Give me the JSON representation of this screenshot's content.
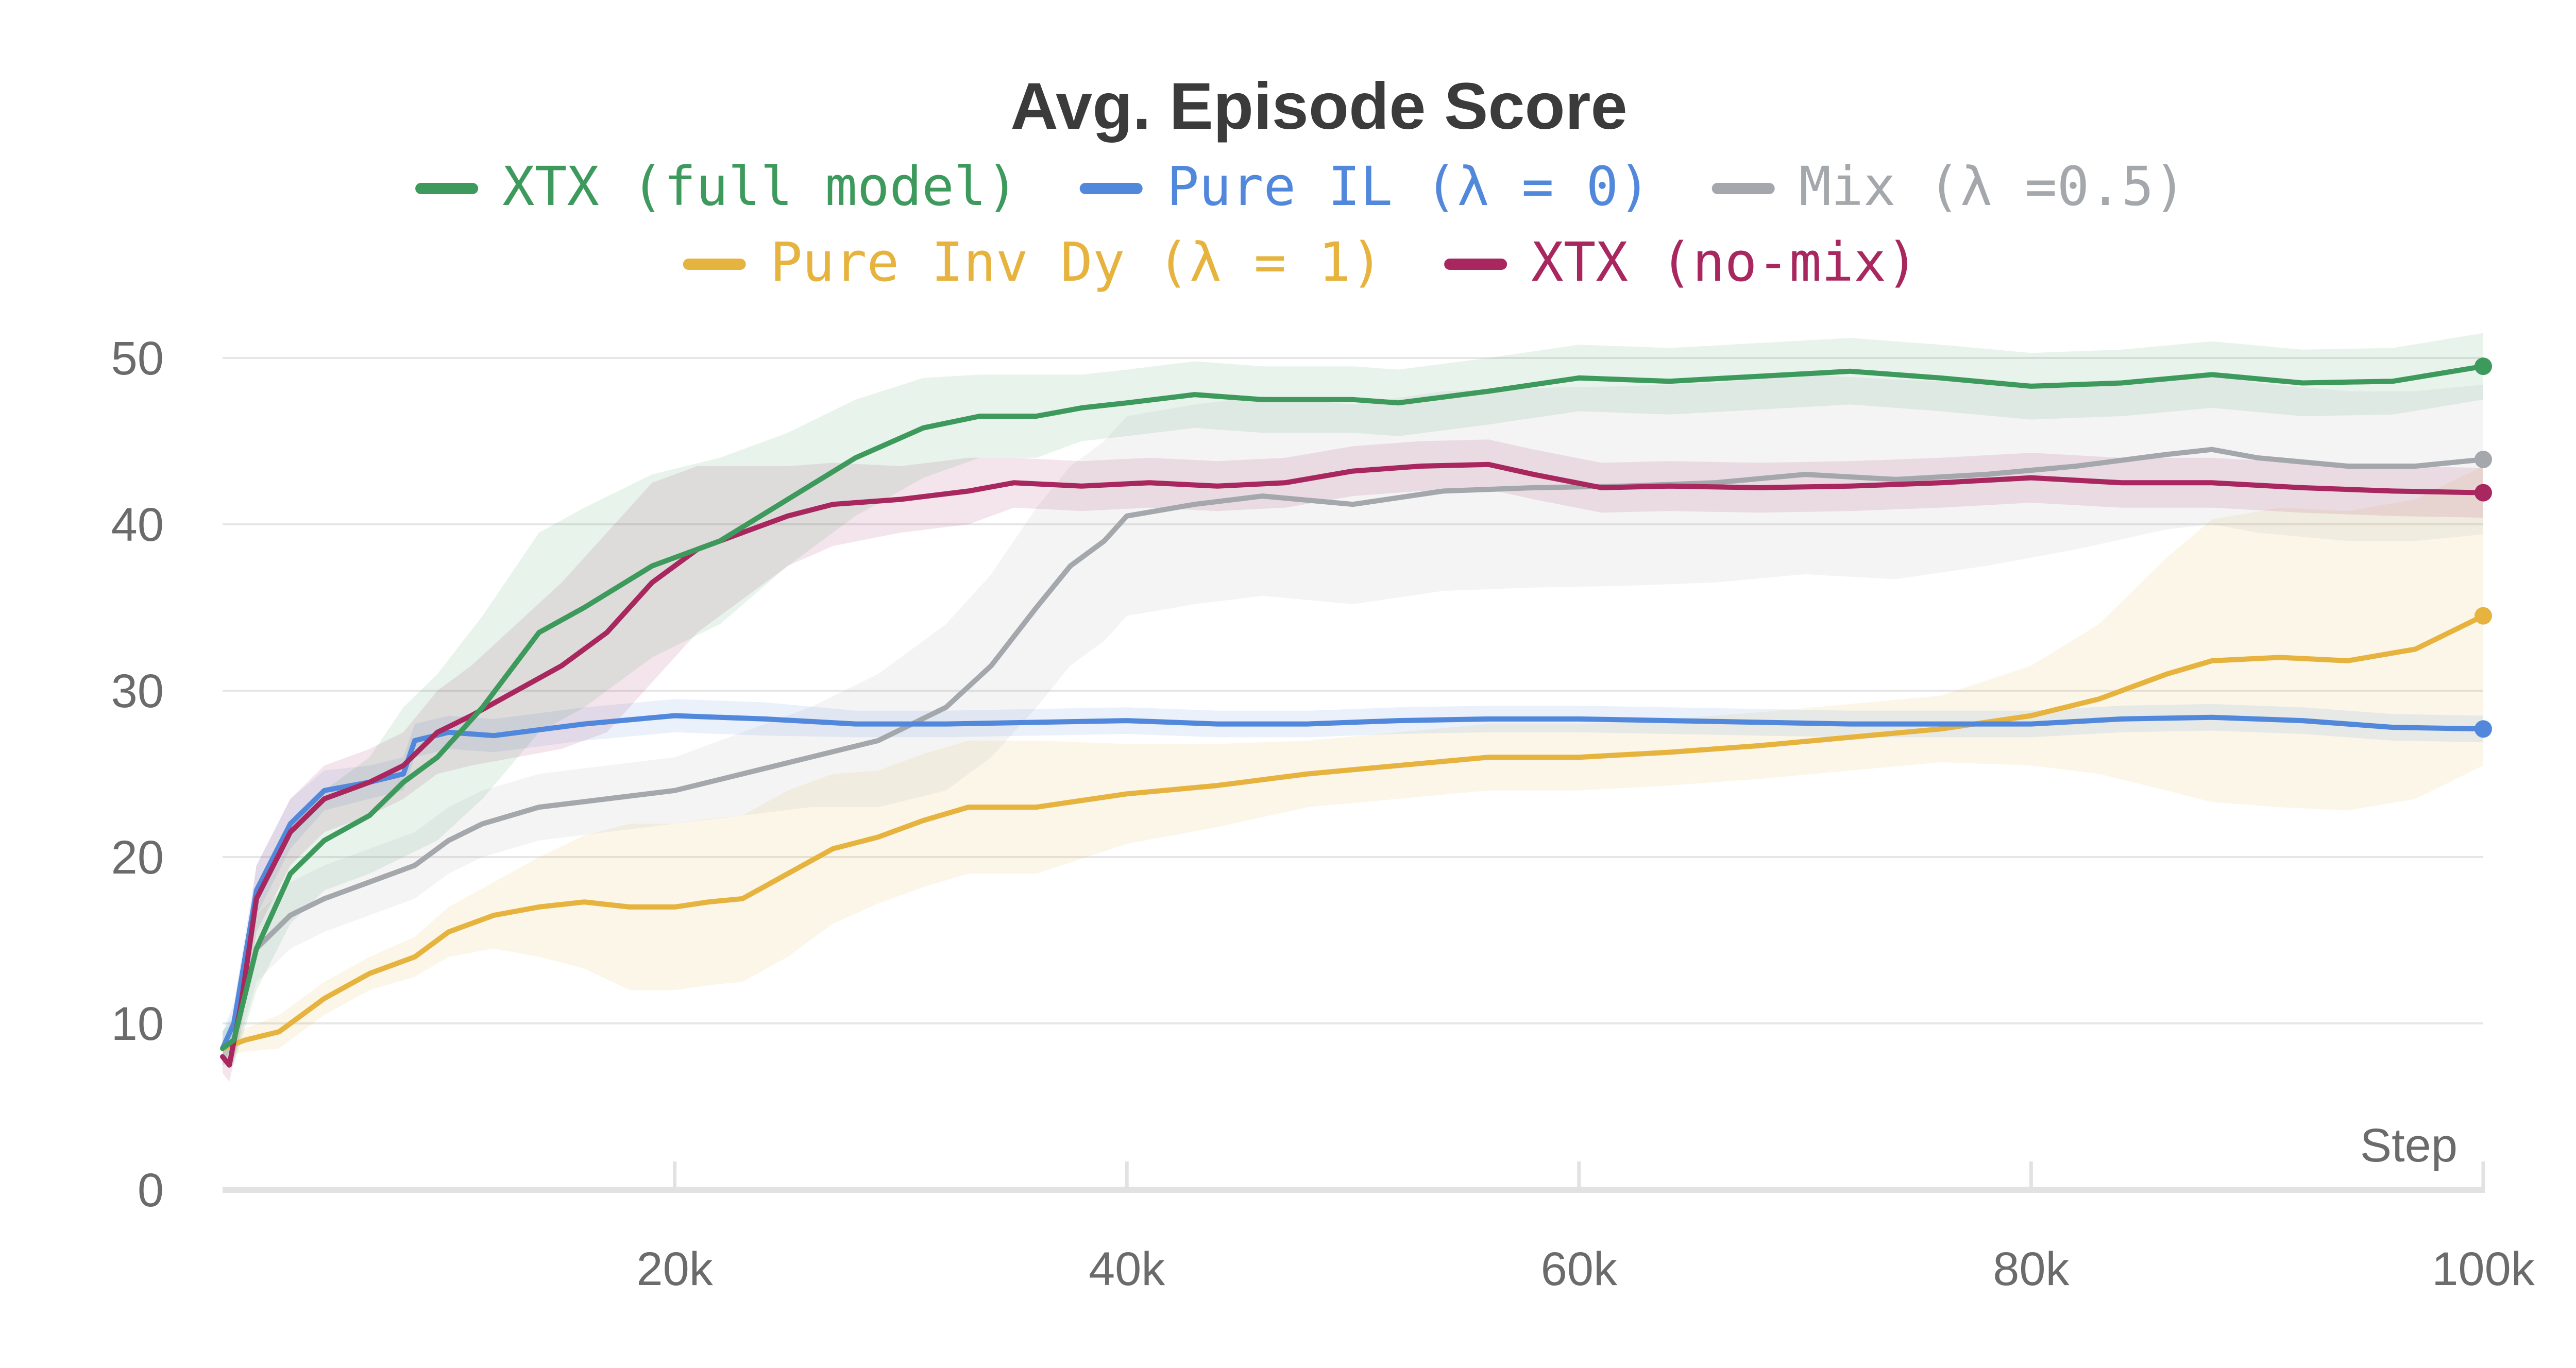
{
  "chart_data": {
    "type": "line",
    "title": "Avg. Episode Score",
    "xlabel": "Step",
    "ylabel": "",
    "xlim": [
      0,
      100000
    ],
    "ylim": [
      0,
      50
    ],
    "xticks": [
      20000,
      40000,
      60000,
      80000,
      100000
    ],
    "xtick_labels": [
      "20k",
      "40k",
      "60k",
      "80k",
      "100k"
    ],
    "yticks": [
      0,
      10,
      20,
      30,
      40,
      50
    ],
    "ytick_labels": [
      "0",
      "10",
      "20",
      "30",
      "40",
      "50"
    ],
    "legend_position": "top-center",
    "series": [
      {
        "name": "XTX (full model)",
        "color": "#3d9a5c",
        "x": [
          0,
          500,
          1500,
          3000,
          4500,
          6500,
          8000,
          9500,
          11500,
          14000,
          16000,
          19000,
          22000,
          25000,
          28000,
          31000,
          33500,
          36000,
          38000,
          40000,
          43000,
          46000,
          50000,
          52000,
          56000,
          60000,
          64000,
          68000,
          72000,
          76000,
          80000,
          84000,
          88000,
          92000,
          96000,
          100000
        ],
        "y": [
          8.5,
          9.0,
          14.5,
          19.0,
          21.0,
          22.5,
          24.5,
          26.0,
          29.0,
          33.5,
          35.0,
          37.5,
          39.0,
          41.5,
          44.0,
          45.8,
          46.5,
          46.5,
          47.0,
          47.3,
          47.8,
          47.5,
          47.5,
          47.3,
          48.0,
          48.8,
          48.6,
          48.9,
          49.2,
          48.8,
          48.3,
          48.5,
          49.0,
          48.5,
          48.6,
          49.5
        ],
        "band": [
          1.0,
          1.5,
          2.5,
          3.0,
          3.0,
          3.5,
          4.5,
          5.0,
          5.5,
          6.0,
          6.0,
          5.5,
          5.0,
          4.0,
          3.5,
          3.0,
          2.5,
          2.5,
          2.0,
          2.0,
          2.0,
          2.0,
          2.0,
          2.0,
          2.0,
          2.0,
          2.0,
          2.0,
          2.0,
          2.0,
          2.0,
          2.0,
          2.0,
          2.0,
          2.0,
          2.0
        ]
      },
      {
        "name": "Pure IL (λ = 0)",
        "color": "#5288db",
        "x": [
          0,
          500,
          1500,
          3000,
          4500,
          6500,
          8000,
          8500,
          10000,
          12000,
          16000,
          20000,
          24000,
          28000,
          32000,
          36000,
          40000,
          44000,
          48000,
          52000,
          56000,
          60000,
          64000,
          68000,
          72000,
          76000,
          80000,
          84000,
          88000,
          92000,
          96000,
          100000
        ],
        "y": [
          8.5,
          10.0,
          18.0,
          22.0,
          24.0,
          24.5,
          25.0,
          27.0,
          27.5,
          27.3,
          28.0,
          28.5,
          28.3,
          28.0,
          28.0,
          28.1,
          28.2,
          28.0,
          28.0,
          28.2,
          28.3,
          28.3,
          28.2,
          28.1,
          28.0,
          28.0,
          28.0,
          28.3,
          28.4,
          28.2,
          27.8,
          27.7
        ],
        "band": [
          1.0,
          1.2,
          1.5,
          1.5,
          1.2,
          1.0,
          1.0,
          1.0,
          1.0,
          1.0,
          1.0,
          1.0,
          1.0,
          0.8,
          0.8,
          0.8,
          0.8,
          0.8,
          0.8,
          0.8,
          0.8,
          0.8,
          0.8,
          0.8,
          0.8,
          0.8,
          0.8,
          0.8,
          0.8,
          0.8,
          0.8,
          0.8
        ]
      },
      {
        "name": "Mix (λ =0.5)",
        "color": "#a4a7ab",
        "x": [
          0,
          500,
          1500,
          3000,
          4500,
          6500,
          8500,
          10000,
          11500,
          14000,
          17000,
          20000,
          23000,
          26000,
          29000,
          32000,
          34000,
          36000,
          37500,
          39000,
          40000,
          43000,
          46000,
          50000,
          54000,
          58000,
          62000,
          66000,
          70000,
          74000,
          78000,
          82000,
          86000,
          88000,
          90000,
          94000,
          97000,
          100000
        ],
        "y": [
          8.5,
          9.0,
          14.5,
          16.5,
          17.5,
          18.5,
          19.5,
          21.0,
          22.0,
          23.0,
          23.5,
          24.0,
          25.0,
          26.0,
          27.0,
          29.0,
          31.5,
          35.0,
          37.5,
          39.0,
          40.5,
          41.2,
          41.7,
          41.2,
          42.0,
          42.2,
          42.3,
          42.5,
          43.0,
          42.7,
          43.0,
          43.5,
          44.2,
          44.5,
          44.0,
          43.5,
          43.5,
          43.9
        ],
        "band": [
          1.0,
          1.2,
          2.0,
          2.0,
          2.0,
          2.0,
          2.0,
          2.0,
          2.0,
          2.0,
          2.0,
          2.0,
          2.5,
          3.0,
          4.0,
          5.0,
          5.5,
          6.0,
          6.0,
          6.0,
          6.0,
          6.0,
          6.0,
          6.0,
          6.0,
          6.0,
          6.0,
          6.0,
          6.0,
          6.0,
          5.5,
          5.0,
          4.5,
          4.5,
          4.5,
          4.5,
          4.5,
          4.5
        ]
      },
      {
        "name": "Pure Inv Dy (λ = 1)",
        "color": "#e6b33e",
        "x": [
          0,
          1000,
          2500,
          4500,
          6500,
          8500,
          10000,
          12000,
          14000,
          16000,
          18000,
          20000,
          21500,
          23000,
          25000,
          27000,
          29000,
          31000,
          33000,
          36000,
          40000,
          44000,
          48000,
          52000,
          56000,
          60000,
          64000,
          68000,
          72000,
          76000,
          80000,
          83000,
          86000,
          88000,
          91000,
          94000,
          97000,
          100000
        ],
        "y": [
          8.5,
          9.0,
          9.5,
          11.5,
          13.0,
          14.0,
          15.5,
          16.5,
          17.0,
          17.3,
          17.0,
          17.0,
          17.3,
          17.5,
          19.0,
          20.5,
          21.2,
          22.2,
          23.0,
          23.0,
          23.8,
          24.3,
          25.0,
          25.5,
          26.0,
          26.0,
          26.3,
          26.7,
          27.2,
          27.7,
          28.5,
          29.5,
          31.0,
          31.8,
          32.0,
          31.8,
          32.5,
          34.5
        ],
        "band": [
          0.5,
          0.7,
          1.0,
          1.0,
          1.0,
          1.2,
          1.5,
          2.0,
          3.0,
          4.0,
          5.0,
          5.0,
          5.0,
          5.0,
          5.0,
          4.5,
          4.0,
          4.0,
          4.0,
          4.0,
          3.0,
          2.5,
          2.0,
          2.0,
          2.0,
          2.0,
          2.0,
          2.0,
          2.0,
          2.0,
          3.0,
          4.5,
          7.0,
          8.5,
          9.0,
          9.0,
          9.0,
          9.0
        ]
      },
      {
        "name": "XTX (no-mix)",
        "color": "#a8275f",
        "x": [
          0,
          300,
          800,
          1500,
          3000,
          4500,
          6500,
          8000,
          9500,
          11000,
          13000,
          15000,
          17000,
          19000,
          21000,
          23000,
          25000,
          27000,
          30000,
          33000,
          35000,
          38000,
          41000,
          44000,
          47000,
          50000,
          53000,
          56000,
          58000,
          61000,
          64000,
          68000,
          72000,
          76000,
          80000,
          84000,
          88000,
          92000,
          96000,
          100000
        ],
        "y": [
          8.0,
          7.5,
          11.0,
          17.5,
          21.5,
          23.5,
          24.5,
          25.5,
          27.5,
          28.5,
          30.0,
          31.5,
          33.5,
          36.5,
          38.5,
          39.5,
          40.5,
          41.2,
          41.5,
          42.0,
          42.5,
          42.3,
          42.5,
          42.3,
          42.5,
          43.2,
          43.5,
          43.6,
          43.0,
          42.2,
          42.3,
          42.2,
          42.3,
          42.5,
          42.8,
          42.5,
          42.5,
          42.2,
          42.0,
          41.9
        ],
        "band": [
          1.0,
          1.0,
          1.5,
          2.0,
          2.0,
          2.0,
          2.0,
          2.0,
          2.5,
          3.0,
          4.0,
          5.0,
          6.0,
          6.0,
          5.0,
          4.0,
          3.0,
          2.5,
          2.0,
          2.0,
          1.5,
          1.5,
          1.5,
          1.5,
          1.5,
          1.5,
          1.5,
          1.5,
          1.5,
          1.5,
          1.5,
          1.5,
          1.5,
          1.5,
          1.5,
          1.5,
          1.5,
          1.5,
          1.5,
          1.5
        ]
      }
    ],
    "legend_rows": [
      [
        0,
        1,
        2
      ],
      [
        3,
        4
      ]
    ]
  }
}
